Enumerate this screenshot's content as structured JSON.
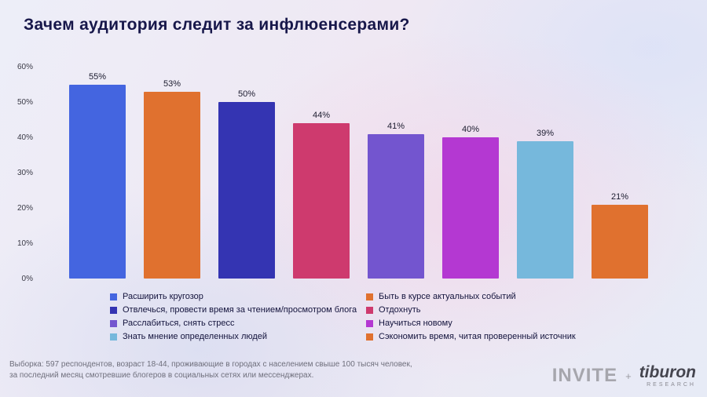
{
  "title": "Зачем аудитория следит за инфлюенсерами?",
  "chart_data": {
    "type": "bar",
    "title": "Зачем аудитория следит за инфлюенсерами?",
    "categories": [
      "Расширить кругозор",
      "Быть в курсе актуальных событий",
      "Отвлечься, провести время за чтением/просмотром блога",
      "Отдохнуть",
      "Расслабиться, снять стресс",
      "Научиться новому",
      "Знать мнение определенных людей",
      "Сэкономить время, читая проверенный источник"
    ],
    "values": [
      55,
      53,
      50,
      44,
      41,
      40,
      39,
      21
    ],
    "unit": "%",
    "colors": [
      "#4465e0",
      "#e0712f",
      "#3434b2",
      "#ce3a6e",
      "#7355cf",
      "#b438d2",
      "#76b8dc",
      "#e0712f"
    ],
    "ylim": [
      0,
      60
    ],
    "yticks": [
      0,
      10,
      20,
      30,
      40,
      50,
      60
    ],
    "ytick_labels": [
      "0%",
      "10%",
      "20%",
      "30%",
      "40%",
      "50%",
      "60%"
    ],
    "grid": false,
    "legend_position": "bottom",
    "legend_columns": [
      [
        0,
        2,
        4,
        6
      ],
      [
        1,
        3,
        5,
        7
      ]
    ]
  },
  "footer": {
    "line1": "Выборка: 597 респондентов, возраст 18-44, проживающие в городах с населением свыше 100 тысяч человек,",
    "line2": "за последний месяц смотревшие блогеров в социальных сетях или мессенджерах."
  },
  "branding": {
    "invite": "INVITE",
    "plus": "+",
    "tiburon": "tiburon",
    "research": "RESEARCH"
  }
}
